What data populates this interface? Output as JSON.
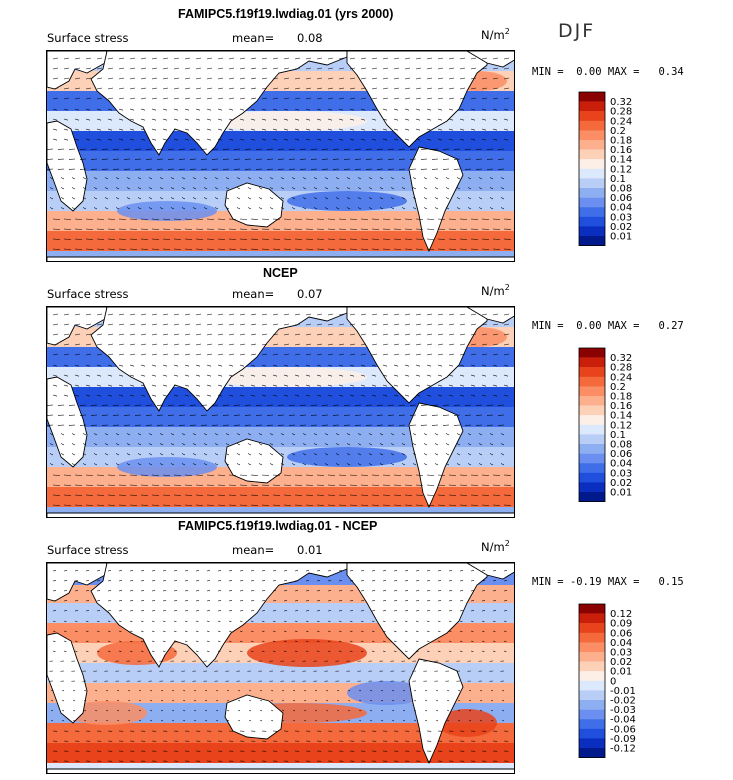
{
  "season": "DJF",
  "units": "N/m",
  "units_sup": "2",
  "panels": [
    {
      "title": "FAMIPC5.f19f19.lwdiag.01 (yrs 2000)",
      "field_label": "Surface stress",
      "mean_label": "mean=",
      "mean_value": "0.08",
      "min_label": "MIN =",
      "min_value": "0.00",
      "max_label": "MAX =",
      "max_value": "0.34"
    },
    {
      "title": "NCEP",
      "field_label": "Surface stress",
      "mean_label": "mean=",
      "mean_value": "0.07",
      "min_label": "MIN =",
      "min_value": "0.00",
      "max_label": "MAX =",
      "max_value": "0.27"
    },
    {
      "title": "FAMIPC5.f19f19.lwdiag.01 - NCEP",
      "field_label": "Surface stress",
      "mean_label": "mean=",
      "mean_value": "0.01",
      "min_label": "MIN =",
      "min_value": "-0.19",
      "max_label": "MAX =",
      "max_value": "0.15"
    }
  ],
  "chart_data": [
    {
      "type": "heatmap",
      "title": "FAMIPC5.f19f19.lwdiag.01 (yrs 2000)",
      "variable": "Surface stress",
      "mean": 0.08,
      "min": 0.0,
      "max": 0.34,
      "colorbar_levels": [
        "0.32",
        "0.28",
        "0.24",
        "0.2",
        "0.18",
        "0.16",
        "0.14",
        "0.12",
        "0.1",
        "0.08",
        "0.06",
        "0.04",
        "0.03",
        "0.02",
        "0.01"
      ],
      "colors": [
        "#8b0000",
        "#c81e0a",
        "#e8431a",
        "#f56a3c",
        "#fb8e64",
        "#fdb08e",
        "#fdd0b8",
        "#fdeee6",
        "#dce8fb",
        "#b9cef7",
        "#8eaef2",
        "#6a8ff0",
        "#3f6ee8",
        "#1f4fdc",
        "#0a2fc0",
        "#001a8c"
      ]
    },
    {
      "type": "heatmap",
      "title": "NCEP",
      "variable": "Surface stress",
      "mean": 0.07,
      "min": 0.0,
      "max": 0.27,
      "colorbar_levels": [
        "0.32",
        "0.28",
        "0.24",
        "0.2",
        "0.18",
        "0.16",
        "0.14",
        "0.12",
        "0.1",
        "0.08",
        "0.06",
        "0.04",
        "0.03",
        "0.02",
        "0.01"
      ],
      "colors": [
        "#8b0000",
        "#c81e0a",
        "#e8431a",
        "#f56a3c",
        "#fb8e64",
        "#fdb08e",
        "#fdd0b8",
        "#fdeee6",
        "#dce8fb",
        "#b9cef7",
        "#8eaef2",
        "#6a8ff0",
        "#3f6ee8",
        "#1f4fdc",
        "#0a2fc0",
        "#001a8c"
      ]
    },
    {
      "type": "heatmap",
      "title": "FAMIPC5.f19f19.lwdiag.01 - NCEP",
      "variable": "Surface stress",
      "mean": 0.01,
      "min": -0.19,
      "max": 0.15,
      "colorbar_levels": [
        "0.12",
        "0.09",
        "0.06",
        "0.04",
        "0.03",
        "0.02",
        "0.01",
        "0",
        "-0.01",
        "-0.02",
        "-0.03",
        "-0.04",
        "-0.06",
        "-0.09",
        "-0.12"
      ],
      "colors": [
        "#8b0000",
        "#c81e0a",
        "#e8431a",
        "#f56a3c",
        "#fb8e64",
        "#fdb08e",
        "#fdd0b8",
        "#fdeee6",
        "#dce8fb",
        "#b9cef7",
        "#8eaef2",
        "#6a8ff0",
        "#3f6ee8",
        "#1f4fdc",
        "#0a2fc0",
        "#001a8c"
      ]
    }
  ]
}
